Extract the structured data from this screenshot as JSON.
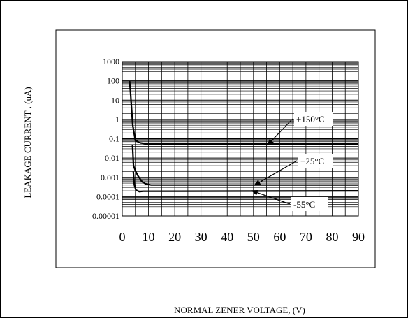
{
  "chart_data": {
    "type": "line",
    "title": "",
    "xlabel": "NORMAL ZENER VOLTAGE, (V)",
    "ylabel": "LEAKAGE CURRENT , (uA)",
    "x_range": [
      0,
      90
    ],
    "y_range": [
      1e-05,
      1000
    ],
    "y_scale": "log",
    "x_ticks": [
      "0",
      "10",
      "20",
      "30",
      "40",
      "50",
      "60",
      "70",
      "80",
      "90"
    ],
    "y_ticks": [
      "1000",
      "100",
      "10",
      "1",
      "0.1",
      "0.01",
      "0.001",
      "0.0001",
      "0.00001"
    ],
    "grid": true,
    "series": [
      {
        "name": "+150°C",
        "x": [
          2.8,
          3.2,
          3.6,
          4.0,
          5.0,
          7.0,
          9.0,
          90.0
        ],
        "y": [
          100,
          20,
          3,
          0.5,
          0.08,
          0.06,
          0.055,
          0.055
        ]
      },
      {
        "name": "+25°C",
        "x": [
          3.9,
          4.3,
          5.0,
          6.0,
          7.5,
          9.0,
          11.0,
          90.0
        ],
        "y": [
          0.05,
          0.004,
          0.0022,
          0.0012,
          0.0006,
          0.00045,
          0.0004,
          0.0004
        ]
      },
      {
        "name": "-55°C",
        "x": [
          4.2,
          4.6,
          5.2,
          6.5,
          8.0,
          90.0
        ],
        "y": [
          0.002,
          0.0004,
          0.00022,
          0.00018,
          0.00019,
          0.0002
        ]
      }
    ],
    "annotations": [
      {
        "text": "+150°C",
        "x": 55.5,
        "y": 0.05
      },
      {
        "text": "+25°C",
        "x": 50.5,
        "y": 0.0004
      },
      {
        "text": "-55°C",
        "x": 49.5,
        "y": 0.0002
      }
    ]
  }
}
